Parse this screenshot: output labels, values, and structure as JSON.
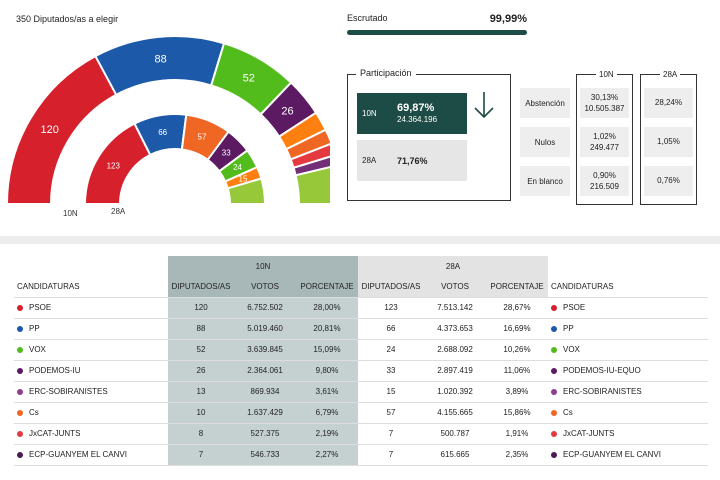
{
  "seats": {
    "title": "350 Diputados/as a elegir",
    "label_10n": "10N",
    "label_28a": "28A",
    "parties_10n": [
      {
        "party": "PSOE",
        "seats": 120,
        "color": "#d6202c"
      },
      {
        "party": "PP",
        "seats": 88,
        "color": "#1d59a9"
      },
      {
        "party": "VOX",
        "seats": 52,
        "color": "#52bc1d"
      },
      {
        "party": "PODEMOS-IU",
        "seats": 26,
        "color": "#5b1a61"
      },
      {
        "party": "ERC-SOBIRANISTES",
        "seats": 13,
        "color": "#ff7f10"
      },
      {
        "party": "Cs",
        "seats": 10,
        "color": "#f06623"
      },
      {
        "party": "JxCAT-JUNTS",
        "seats": 8,
        "color": "#e43a3f"
      },
      {
        "party": "ECP-GUANYEM EL CANVI",
        "seats": 7,
        "color": "#722e76"
      },
      {
        "party": "Otros",
        "seats": 26,
        "color": "#96c83a"
      }
    ],
    "parties_28a": [
      {
        "party": "PSOE",
        "seats": 123,
        "color": "#d6202c"
      },
      {
        "party": "PP",
        "seats": 66,
        "color": "#1d59a9"
      },
      {
        "party": "Cs",
        "seats": 57,
        "color": "#f06623"
      },
      {
        "party": "PODEMOS-IU-EQUO",
        "seats": 33,
        "color": "#5b1a61"
      },
      {
        "party": "VOX",
        "seats": 24,
        "color": "#52bc1d"
      },
      {
        "party": "ERC-SOBIRANISTES",
        "seats": 15,
        "color": "#ff7f10"
      },
      {
        "party": "Otros",
        "seats": 32,
        "color": "#96c83a"
      }
    ]
  },
  "scrutiny": {
    "label": "Escrutado",
    "value": "99,99%",
    "fraction": 0.9999
  },
  "participation": {
    "title": "Participación",
    "row_10n": {
      "label": "10N",
      "percent": "69,87%",
      "votes": "24.364.196"
    },
    "row_28a": {
      "label": "28A",
      "percent": "71,76%"
    }
  },
  "stats": {
    "col_10n": "10N",
    "col_28a": "28A",
    "rows": [
      {
        "label": "Abstención",
        "v10n_pct": "30,13%",
        "v10n_votes": "10.505.387",
        "v28a": "28,24%"
      },
      {
        "label": "Nulos",
        "v10n_pct": "1,02%",
        "v10n_votes": "249.477",
        "v28a": "1,05%"
      },
      {
        "label": "En blanco",
        "v10n_pct": "0,90%",
        "v10n_votes": "216.509",
        "v28a": "0,76%"
      }
    ]
  },
  "table": {
    "group_10n": "10N",
    "group_28a": "28A",
    "headers": {
      "candidaturas": "CANDIDATURAS",
      "diputados": "DIPUTADOS/AS",
      "votos": "VOTOS",
      "porcentaje": "PORCENTAJE"
    },
    "rows": [
      {
        "name": "PSOE",
        "color": "#d6202c",
        "d10": "120",
        "v10": "6.752.502",
        "p10": "28,00%",
        "d28": "123",
        "v28": "7.513.142",
        "p28": "28,67%",
        "name28": "PSOE"
      },
      {
        "name": "PP",
        "color": "#1d59a9",
        "d10": "88",
        "v10": "5.019.460",
        "p10": "20,81%",
        "d28": "66",
        "v28": "4.373.653",
        "p28": "16,69%",
        "name28": "PP"
      },
      {
        "name": "VOX",
        "color": "#52bc1d",
        "d10": "52",
        "v10": "3.639.845",
        "p10": "15,09%",
        "d28": "24",
        "v28": "2.688.092",
        "p28": "10,26%",
        "name28": "VOX"
      },
      {
        "name": "PODEMOS-IU",
        "color": "#5b1a61",
        "d10": "26",
        "v10": "2.364.061",
        "p10": "9,80%",
        "d28": "33",
        "v28": "2.897.419",
        "p28": "11,06%",
        "name28": "PODEMOS-IU-EQUO"
      },
      {
        "name": "ERC-SOBIRANISTES",
        "color": "#8f3d8f",
        "d10": "13",
        "v10": "869.934",
        "p10": "3,61%",
        "d28": "15",
        "v28": "1.020.392",
        "p28": "3,89%",
        "name28": "ERC-SOBIRANISTES"
      },
      {
        "name": "Cs",
        "color": "#f06623",
        "d10": "10",
        "v10": "1.637.429",
        "p10": "6,79%",
        "d28": "57",
        "v28": "4.155.665",
        "p28": "15,86%",
        "name28": "Cs"
      },
      {
        "name": "JxCAT-JUNTS",
        "color": "#e43a3f",
        "d10": "8",
        "v10": "527.375",
        "p10": "2,19%",
        "d28": "7",
        "v28": "500.787",
        "p28": "1,91%",
        "name28": "JxCAT-JUNTS"
      },
      {
        "name": "ECP-GUANYEM EL CANVI",
        "color": "#4a1a55",
        "d10": "7",
        "v10": "546.733",
        "p10": "2,27%",
        "d28": "7",
        "v28": "615.665",
        "p28": "2,35%",
        "name28": "ECP-GUANYEM EL CANVI"
      }
    ]
  }
}
